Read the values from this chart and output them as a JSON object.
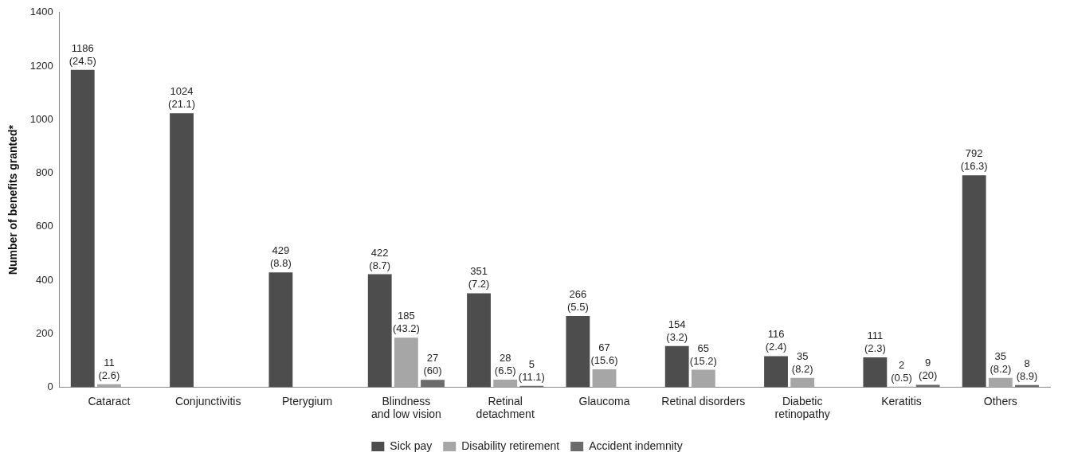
{
  "chart_data": {
    "type": "bar",
    "ylabel": "Number of benefits granted*",
    "categories": [
      "Cataract",
      "Conjunctivitis",
      "Pterygium",
      "Blindness and low vision",
      "Retinal detachment",
      "Glaucoma",
      "Retinal disorders",
      "Diabetic retinopathy",
      "Keratitis",
      "Others"
    ],
    "series": [
      {
        "name": "Sick pay",
        "color": "#4d4d4d",
        "values": [
          1186,
          1024,
          429,
          422,
          351,
          266,
          154,
          116,
          111,
          792
        ],
        "value_labels": [
          "1186 (24.5)",
          "1024 (21.1)",
          "429 (8.8)",
          "422 (8.7)",
          "351 (7.2)",
          "266 (5.5)",
          "154 (3.2)",
          "116 (2.4)",
          "111 (2.3)",
          "792 (16.3)"
        ]
      },
      {
        "name": "Disability retirement",
        "color": "#a6a6a6",
        "values": [
          11,
          null,
          null,
          185,
          28,
          67,
          65,
          35,
          2,
          35
        ],
        "value_labels": [
          "11 (2.6)",
          null,
          null,
          "185 (43.2)",
          "28 (6.5)",
          "67 (15.6)",
          "65 (15.2)",
          "35 (8.2)",
          "2 (0.5)",
          "35 (8.2)"
        ]
      },
      {
        "name": "Accident indemnity",
        "color": "#6b6b6b",
        "values": [
          null,
          null,
          null,
          27,
          5,
          null,
          null,
          null,
          9,
          8
        ],
        "value_labels": [
          null,
          null,
          null,
          "27 (60)",
          "5 (11.1)",
          null,
          null,
          null,
          "9 (20)",
          "8 (8.9)"
        ]
      }
    ],
    "ylim": [
      0,
      1400
    ],
    "yticks": [
      0,
      200,
      400,
      600,
      800,
      1000,
      1200,
      1400
    ],
    "grid": false,
    "legend": "bottom"
  }
}
